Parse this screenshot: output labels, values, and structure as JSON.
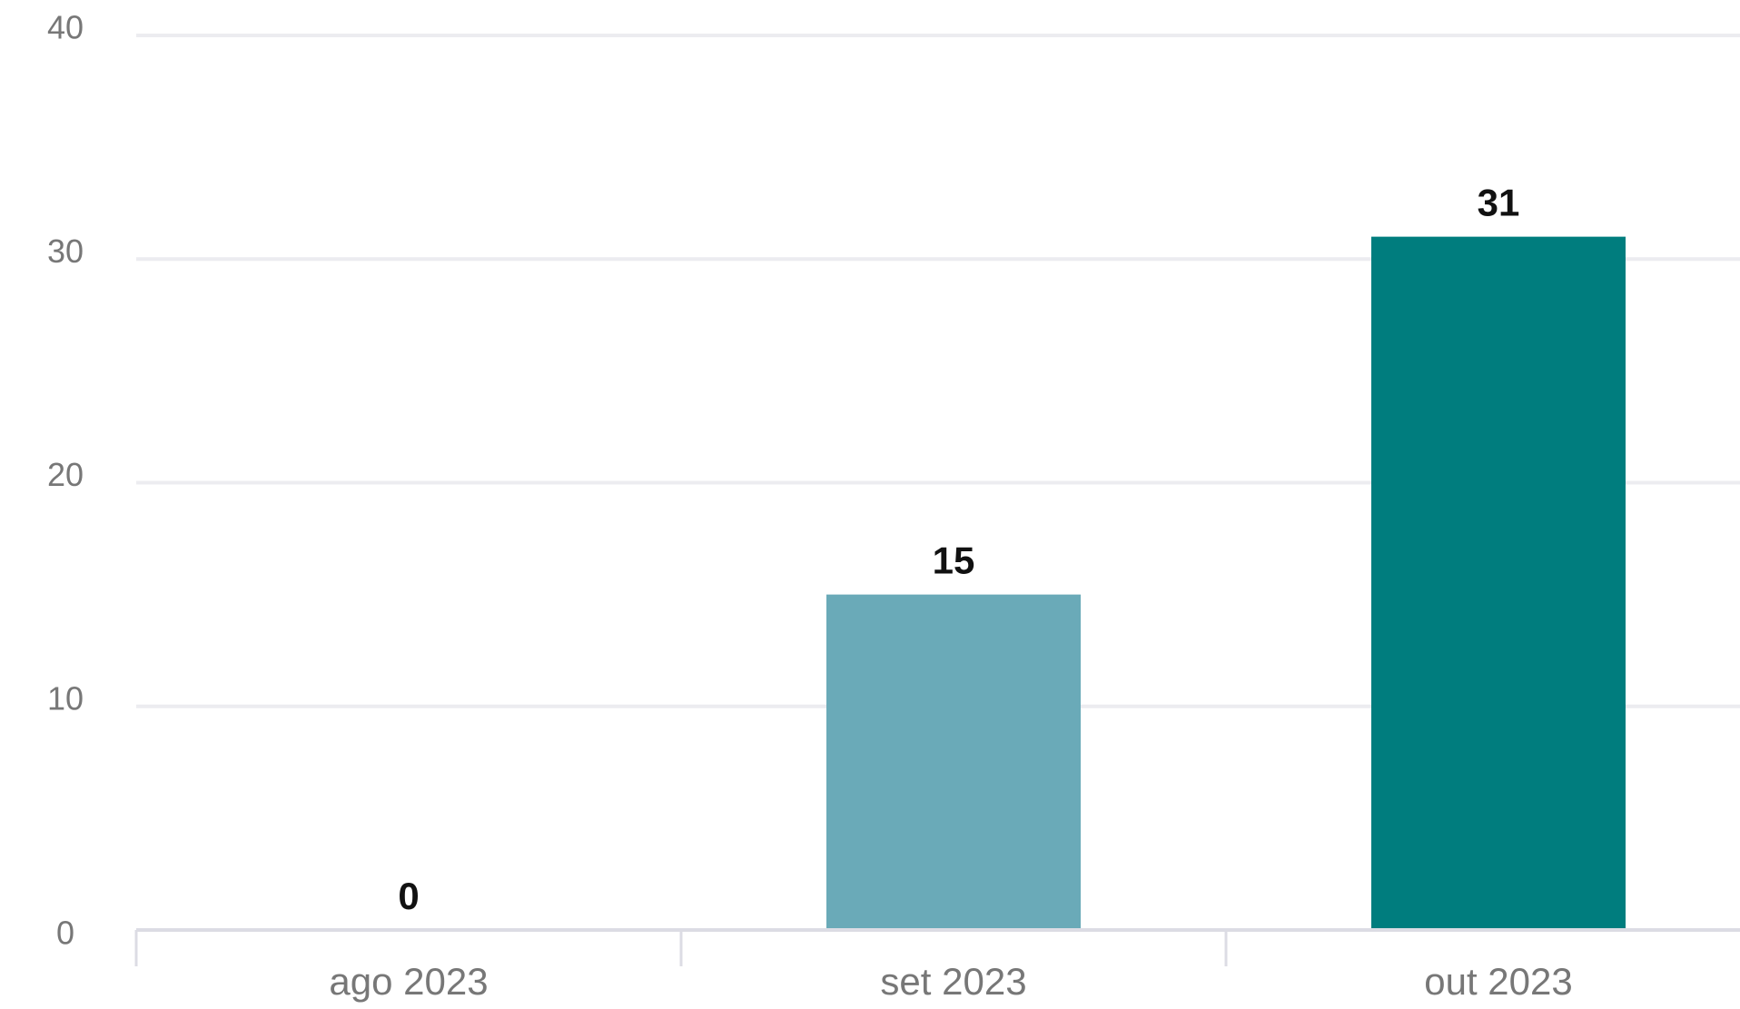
{
  "chart_data": {
    "type": "bar",
    "categories": [
      "ago 2023",
      "set 2023",
      "out 2023"
    ],
    "values": [
      0,
      15,
      31
    ],
    "data_labels": [
      "0",
      "15",
      "31"
    ],
    "y_ticks": [
      0,
      10,
      20,
      30,
      40
    ],
    "ylim": [
      0,
      40
    ],
    "grid": true,
    "legend": "none",
    "title": "",
    "xlabel": "",
    "ylabel": "",
    "colors": [
      "#6aaab8",
      "#6aaab8",
      "#007d7e"
    ]
  }
}
